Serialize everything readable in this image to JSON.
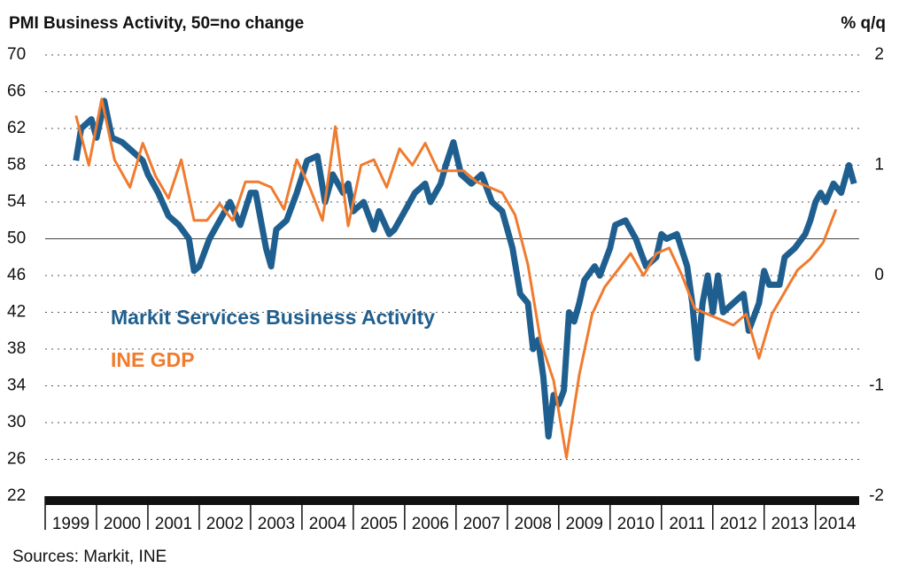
{
  "chart_data": {
    "type": "line",
    "title": "PMI Business Activity, 50=no change",
    "y2_label": "% q/q",
    "source": "Sources: Markit, INE",
    "xlim": [
      1999,
      2014.85
    ],
    "xticks": [
      1999,
      2000,
      2001,
      2002,
      2003,
      2004,
      2005,
      2006,
      2007,
      2008,
      2009,
      2010,
      2011,
      2012,
      2013,
      2014
    ],
    "ylim": [
      22,
      70
    ],
    "yticks": [
      22,
      26,
      30,
      34,
      38,
      42,
      46,
      50,
      54,
      58,
      62,
      66,
      70
    ],
    "y2lim": [
      -2,
      2
    ],
    "y2ticks": [
      -2,
      -1,
      0,
      1,
      2
    ],
    "grid": true,
    "reference_line": 50,
    "series": [
      {
        "name": "Markit Services Business Activity",
        "color": "#1f5f8f",
        "axis": "y",
        "x": [
          1999.6,
          1999.7,
          1999.9,
          2000.0,
          2000.1,
          2000.15,
          2000.3,
          2000.5,
          2000.7,
          2000.9,
          2001.0,
          2001.2,
          2001.4,
          2001.6,
          2001.8,
          2001.9,
          2002.0,
          2002.2,
          2002.4,
          2002.6,
          2002.8,
          2003.0,
          2003.1,
          2003.3,
          2003.4,
          2003.5,
          2003.7,
          2003.9,
          2004.1,
          2004.3,
          2004.45,
          2004.6,
          2004.8,
          2004.9,
          2005.0,
          2005.2,
          2005.4,
          2005.5,
          2005.7,
          2005.8,
          2006.0,
          2006.2,
          2006.4,
          2006.5,
          2006.7,
          2006.8,
          2006.95,
          2007.1,
          2007.3,
          2007.5,
          2007.7,
          2007.9,
          2008.0,
          2008.1,
          2008.25,
          2008.4,
          2008.5,
          2008.6,
          2008.7,
          2008.8,
          2008.9,
          2009.0,
          2009.1,
          2009.2,
          2009.3,
          2009.4,
          2009.5,
          2009.7,
          2009.8,
          2010.0,
          2010.1,
          2010.3,
          2010.5,
          2010.6,
          2010.7,
          2010.9,
          2011.0,
          2011.1,
          2011.3,
          2011.5,
          2011.6,
          2011.7,
          2011.8,
          2011.9,
          2012.0,
          2012.1,
          2012.2,
          2012.4,
          2012.6,
          2012.7,
          2012.9,
          2013.0,
          2013.1,
          2013.3,
          2013.4,
          2013.6,
          2013.8,
          2013.9,
          2014.0,
          2014.1,
          2014.2,
          2014.35,
          2014.5,
          2014.65,
          2014.75
        ],
        "values": [
          58.5,
          62,
          63,
          61,
          63.5,
          65,
          61,
          60.5,
          59.5,
          58.5,
          57,
          55,
          52.5,
          51.5,
          50,
          46.5,
          47,
          50,
          52,
          54,
          51.5,
          55,
          55,
          49,
          47,
          51,
          52,
          55,
          58.5,
          59,
          54,
          57,
          55,
          56,
          53,
          54,
          51,
          53,
          50.5,
          51,
          53,
          55,
          56,
          54,
          56,
          58,
          60.5,
          57,
          56,
          57,
          54,
          53,
          51,
          49,
          44,
          43,
          38,
          39,
          35,
          28.5,
          33,
          32,
          33.5,
          42,
          41,
          43,
          45.5,
          47,
          46,
          49,
          51.5,
          52,
          50,
          48.5,
          47,
          48,
          50.5,
          50,
          50.5,
          47,
          43,
          37,
          43,
          46,
          42,
          46,
          42,
          43,
          44,
          40,
          43,
          46.5,
          45,
          45,
          48,
          49,
          50.5,
          52,
          54,
          55,
          54,
          56,
          55,
          58,
          56
        ]
      },
      {
        "name": "INE GDP",
        "color": "#f07b2e",
        "axis": "y2",
        "x": [
          1999.6,
          1999.85,
          2000.1,
          2000.35,
          2000.65,
          2000.9,
          2001.15,
          2001.4,
          2001.65,
          2001.9,
          2002.15,
          2002.4,
          2002.65,
          2002.9,
          2003.15,
          2003.4,
          2003.65,
          2003.9,
          2004.15,
          2004.4,
          2004.65,
          2004.9,
          2005.15,
          2005.4,
          2005.65,
          2005.9,
          2006.15,
          2006.4,
          2006.65,
          2006.9,
          2007.15,
          2007.4,
          2007.65,
          2007.9,
          2008.15,
          2008.4,
          2008.65,
          2008.9,
          2009.15,
          2009.4,
          2009.65,
          2009.9,
          2010.15,
          2010.4,
          2010.65,
          2010.9,
          2011.15,
          2011.4,
          2011.65,
          2011.9,
          2012.15,
          2012.4,
          2012.65,
          2012.9,
          2013.15,
          2013.4,
          2013.65,
          2013.9,
          2014.15,
          2014.4
        ],
        "values": [
          1.45,
          1.0,
          1.6,
          1.05,
          0.8,
          1.2,
          0.9,
          0.7,
          1.05,
          0.5,
          0.5,
          0.65,
          0.5,
          0.85,
          0.85,
          0.8,
          0.6,
          1.05,
          0.8,
          0.5,
          1.35,
          0.45,
          1.0,
          1.05,
          0.8,
          1.15,
          1.0,
          1.2,
          0.95,
          0.95,
          0.95,
          0.85,
          0.8,
          0.75,
          0.55,
          0.1,
          -0.6,
          -0.95,
          -1.65,
          -0.9,
          -0.35,
          -0.1,
          0.05,
          0.2,
          0.0,
          0.2,
          0.25,
          0.0,
          -0.3,
          -0.35,
          -0.4,
          -0.45,
          -0.35,
          -0.75,
          -0.35,
          -0.15,
          0.05,
          0.15,
          0.3,
          0.6
        ]
      }
    ]
  }
}
